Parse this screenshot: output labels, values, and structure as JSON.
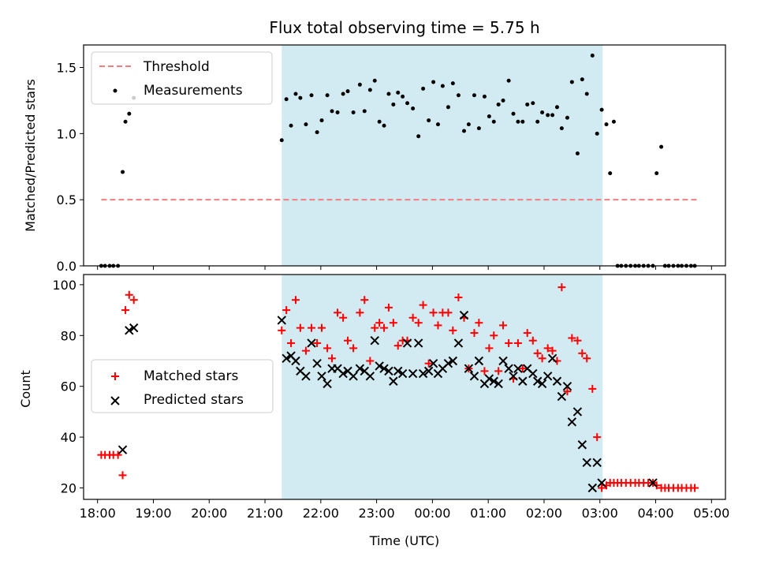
{
  "chart_data": [
    {
      "type": "scatter",
      "title": "Flux total observing time = 5.75 h",
      "xlabel": "",
      "ylabel": "Matched/Predicted stars",
      "ylim": [
        0,
        1.67
      ],
      "xlim": [
        "17:45",
        "05:15"
      ],
      "yticks": [
        0.0,
        0.5,
        1.0,
        1.5
      ],
      "ytick_labels": [
        "0.0",
        "0.5",
        "1.0",
        "1.5"
      ],
      "legend_position": "upper-left",
      "highlight_span": [
        "21:18",
        "03:03"
      ],
      "highlight_color": "#add8e6",
      "threshold": {
        "name": "Threshold",
        "value": 0.5,
        "x": [
          "18:04",
          "04:47"
        ],
        "color": "#f08080"
      },
      "series": [
        {
          "name": "Measurements",
          "marker": "dot",
          "color": "#000000",
          "x": [
            "18:04",
            "18:08",
            "18:13",
            "18:17",
            "18:22",
            "18:27",
            "18:30",
            "18:34",
            "18:39",
            "21:18",
            "21:23",
            "21:28",
            "21:33",
            "21:38",
            "21:44",
            "21:50",
            "21:56",
            "22:01",
            "22:07",
            "22:12",
            "22:18",
            "22:24",
            "22:29",
            "22:35",
            "22:42",
            "22:47",
            "22:53",
            "22:58",
            "23:03",
            "23:08",
            "23:13",
            "23:18",
            "23:23",
            "23:28",
            "23:33",
            "23:39",
            "23:45",
            "23:50",
            "23:56",
            "00:01",
            "00:06",
            "00:11",
            "00:17",
            "00:22",
            "00:28",
            "00:34",
            "00:39",
            "00:45",
            "00:50",
            "00:56",
            "01:01",
            "01:06",
            "01:11",
            "01:16",
            "01:22",
            "01:27",
            "01:32",
            "01:37",
            "01:42",
            "01:48",
            "01:53",
            "01:58",
            "02:04",
            "02:09",
            "02:14",
            "02:19",
            "02:25",
            "02:30",
            "02:36",
            "02:41",
            "02:46",
            "02:52",
            "02:57",
            "03:02",
            "03:07",
            "03:11",
            "03:15",
            "03:19",
            "03:23",
            "03:28",
            "03:33",
            "03:38",
            "03:42",
            "03:47",
            "03:52",
            "03:57",
            "04:01",
            "04:06",
            "04:10",
            "04:14",
            "04:19",
            "04:24",
            "04:28",
            "04:33",
            "04:38",
            "04:42"
          ],
          "y": [
            0,
            0,
            0,
            0,
            0,
            0.71,
            1.09,
            1.15,
            1.27,
            0.95,
            1.26,
            1.06,
            1.3,
            1.27,
            1.07,
            1.29,
            1.01,
            1.1,
            1.29,
            1.17,
            1.16,
            1.3,
            1.32,
            1.16,
            1.37,
            1.17,
            1.33,
            1.4,
            1.09,
            1.06,
            1.3,
            1.22,
            1.31,
            1.28,
            1.23,
            1.19,
            0.98,
            1.34,
            1.1,
            1.39,
            1.07,
            1.36,
            1.2,
            1.38,
            1.29,
            1.02,
            1.07,
            1.29,
            1.04,
            1.28,
            1.13,
            1.09,
            1.22,
            1.25,
            1.4,
            1.15,
            1.09,
            1.09,
            1.22,
            1.23,
            1.09,
            1.16,
            1.14,
            1.14,
            1.2,
            1.04,
            1.12,
            1.39,
            0.85,
            1.41,
            1.3,
            1.59,
            1.0,
            1.18,
            1.07,
            0.7,
            1.09,
            0,
            0,
            0,
            0,
            0,
            0,
            0,
            0,
            0,
            0.7,
            0.9,
            0,
            0,
            0,
            0,
            0,
            0,
            0,
            0
          ]
        }
      ]
    },
    {
      "type": "scatter",
      "title": "",
      "xlabel": "Time (UTC)",
      "ylabel": "Count",
      "ylim": [
        15.5,
        104
      ],
      "xlim": [
        "17:45",
        "05:15"
      ],
      "yticks": [
        20,
        40,
        60,
        80,
        100
      ],
      "ytick_labels": [
        "20",
        "40",
        "60",
        "80",
        "100"
      ],
      "xticks": [
        "18:00",
        "19:00",
        "20:00",
        "21:00",
        "22:00",
        "23:00",
        "00:00",
        "01:00",
        "02:00",
        "03:00",
        "04:00",
        "05:00"
      ],
      "legend_position": "center-left",
      "highlight_span": [
        "21:18",
        "03:03"
      ],
      "highlight_color": "#add8e6",
      "series": [
        {
          "name": "Matched stars",
          "marker": "plus",
          "color": "#ff0000",
          "x": [
            "18:04",
            "18:08",
            "18:13",
            "18:17",
            "18:22",
            "18:27",
            "18:30",
            "18:34",
            "18:39",
            "21:18",
            "21:23",
            "21:28",
            "21:33",
            "21:38",
            "21:44",
            "21:50",
            "21:56",
            "22:01",
            "22:07",
            "22:12",
            "22:18",
            "22:24",
            "22:29",
            "22:35",
            "22:42",
            "22:47",
            "22:53",
            "22:58",
            "23:03",
            "23:08",
            "23:13",
            "23:18",
            "23:23",
            "23:28",
            "23:33",
            "23:39",
            "23:45",
            "23:50",
            "23:56",
            "00:01",
            "00:06",
            "00:11",
            "00:17",
            "00:22",
            "00:28",
            "00:34",
            "00:39",
            "00:45",
            "00:50",
            "00:56",
            "01:01",
            "01:06",
            "01:11",
            "01:16",
            "01:22",
            "01:27",
            "01:32",
            "01:37",
            "01:42",
            "01:48",
            "01:53",
            "01:58",
            "02:04",
            "02:09",
            "02:14",
            "02:19",
            "02:25",
            "02:30",
            "02:36",
            "02:41",
            "02:46",
            "02:52",
            "02:57",
            "03:02",
            "03:07",
            "03:11",
            "03:15",
            "03:19",
            "03:23",
            "03:28",
            "03:33",
            "03:38",
            "03:42",
            "03:47",
            "03:52",
            "03:57",
            "04:01",
            "04:06",
            "04:10",
            "04:14",
            "04:19",
            "04:24",
            "04:28",
            "04:33",
            "04:38",
            "04:42"
          ],
          "y": [
            33,
            33,
            33,
            33,
            33,
            25,
            90,
            96,
            94,
            82,
            90,
            77,
            94,
            83,
            74,
            83,
            77,
            83,
            75,
            71,
            89,
            87,
            78,
            75,
            89,
            94,
            70,
            83,
            85,
            83,
            91,
            85,
            76,
            78,
            78,
            87,
            85,
            92,
            69,
            89,
            84,
            89,
            89,
            82,
            95,
            87,
            67,
            81,
            85,
            66,
            75,
            80,
            66,
            84,
            77,
            63,
            77,
            67,
            81,
            78,
            73,
            71,
            75,
            74,
            70,
            99,
            58,
            79,
            78,
            73,
            71,
            59,
            40,
            20,
            21,
            22,
            22,
            22,
            22,
            22,
            22,
            22,
            22,
            22,
            22,
            22,
            21,
            20,
            20,
            20,
            20,
            20,
            20,
            20,
            20,
            20
          ]
        },
        {
          "name": "Predicted stars",
          "marker": "cross",
          "color": "#000000",
          "x": [
            "18:27",
            "18:34",
            "18:39",
            "21:18",
            "21:23",
            "21:28",
            "21:33",
            "21:38",
            "21:44",
            "21:50",
            "21:56",
            "22:01",
            "22:07",
            "22:12",
            "22:18",
            "22:24",
            "22:29",
            "22:35",
            "22:42",
            "22:47",
            "22:53",
            "22:58",
            "23:03",
            "23:08",
            "23:13",
            "23:18",
            "23:23",
            "23:28",
            "23:33",
            "23:39",
            "23:45",
            "23:50",
            "23:56",
            "00:01",
            "00:06",
            "00:11",
            "00:17",
            "00:22",
            "00:28",
            "00:34",
            "00:39",
            "00:45",
            "00:50",
            "00:56",
            "01:01",
            "01:06",
            "01:11",
            "01:16",
            "01:22",
            "01:27",
            "01:32",
            "01:37",
            "01:42",
            "01:48",
            "01:53",
            "01:58",
            "02:04",
            "02:09",
            "02:14",
            "02:19",
            "02:25",
            "02:30",
            "02:36",
            "02:41",
            "02:46",
            "02:52",
            "02:57",
            "03:02",
            "03:57"
          ],
          "y": [
            35,
            82,
            83,
            86,
            71,
            72,
            70,
            66,
            64,
            77,
            69,
            64,
            61,
            67,
            67,
            65,
            66,
            64,
            67,
            66,
            64,
            78,
            68,
            67,
            66,
            62,
            66,
            65,
            77,
            65,
            77,
            65,
            66,
            69,
            65,
            67,
            69,
            70,
            77,
            88,
            67,
            64,
            70,
            61,
            63,
            62,
            61,
            70,
            67,
            64,
            67,
            62,
            67,
            65,
            62,
            61,
            64,
            71,
            62,
            56,
            60,
            46,
            50,
            37,
            30,
            20,
            30,
            22,
            22
          ]
        }
      ]
    }
  ]
}
